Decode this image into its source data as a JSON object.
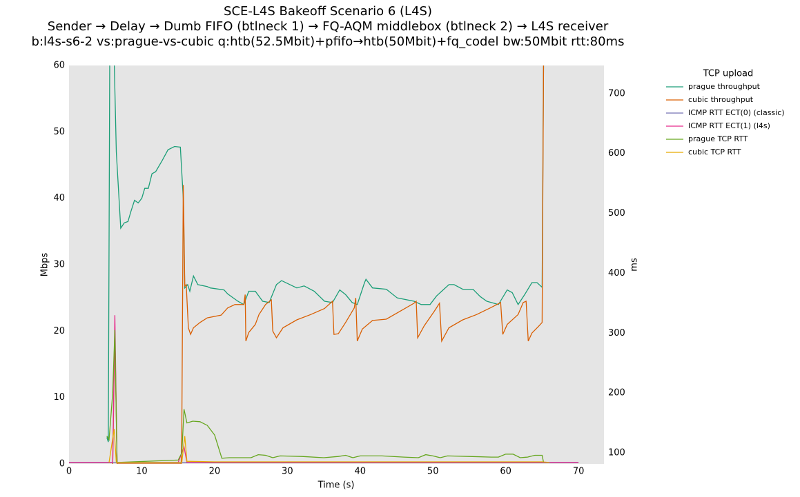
{
  "chart_data": {
    "type": "line",
    "title": [
      "SCE-L4S Bakeoff Scenario 6 (L4S)",
      "Sender → Delay → Dumb FIFO (btlneck 1) → FQ-AQM middlebox (btlneck 2) → L4S receiver",
      "b:l4s-s6-2 vs:prague-vs-cubic q:htb(52.5Mbit)+pfifo→htb(50Mbit)+fq_codel bw:50Mbit rtt:80ms"
    ],
    "xlabel": "Time (s)",
    "ylabel": "Mbps",
    "y2label": "ms",
    "legend_title": "TCP upload",
    "legend_position": "outside-right",
    "xlim": [
      0,
      73.5
    ],
    "xticks": [
      0,
      10,
      20,
      30,
      40,
      50,
      60,
      70
    ],
    "ylim": [
      0,
      60
    ],
    "yticks": [
      0,
      10,
      20,
      30,
      40,
      50,
      60
    ],
    "y2lim": [
      81.6,
      747
    ],
    "y2ticks": [
      100,
      200,
      300,
      400,
      500,
      600,
      700
    ],
    "background": "#e5e5e5",
    "series": [
      {
        "name": "prague throughput",
        "color": "#1b9e77",
        "x": [
          5.2,
          5.4,
          5.6,
          6.2,
          6.5,
          7.1,
          7.6,
          8.1,
          8.5,
          9.0,
          9.5,
          10,
          10.4,
          10.9,
          11.4,
          11.9,
          12.8,
          13.6,
          14.5,
          15.3,
          15.7,
          15.9,
          16.3,
          16.6,
          17.1,
          17.7,
          19,
          19.4,
          21.3,
          21.8,
          23.2,
          24,
          24.7,
          25.6,
          26.6,
          27.5,
          28.5,
          29.2,
          31.3,
          32.3,
          33.7,
          35.1,
          36.2,
          37.2,
          38,
          38.9,
          39.6,
          40.6,
          40.8,
          41.7,
          43.6,
          45.1,
          47.4,
          48.4,
          49.6,
          50.5,
          51.2,
          52.2,
          52.9,
          54.1,
          55.5,
          56.5,
          57.4,
          59,
          60.2,
          60.9,
          61.7,
          62.6,
          63.6,
          64.3,
          65,
          65.2
        ],
        "values": [
          4,
          3.3,
          61,
          61,
          47,
          35.5,
          36.3,
          36.5,
          38,
          39.7,
          39.3,
          40,
          41.5,
          41.5,
          43.7,
          44,
          45.7,
          47.3,
          47.8,
          47.7,
          40,
          26.5,
          27,
          26,
          28.3,
          27,
          26.7,
          26.5,
          26.2,
          25.6,
          24.5,
          24,
          26,
          26,
          24.5,
          24.3,
          27,
          27.6,
          26.5,
          26.8,
          26,
          24.5,
          24.3,
          26.2,
          25.5,
          24.3,
          24,
          27.3,
          27.8,
          26.5,
          26.3,
          25,
          24.5,
          24,
          24,
          25.3,
          26,
          27,
          27,
          26.3,
          26.3,
          25.2,
          24.5,
          24,
          26.2,
          25.8,
          24,
          25.5,
          27.3,
          27.3,
          26.6,
          61
        ]
      },
      {
        "name": "cubic throughput",
        "color": "#d95f02",
        "x": [
          6.0,
          6.3,
          6.6,
          15.4,
          15.5,
          15.7,
          15.8,
          15.9,
          16.1,
          16.4,
          16.7,
          17.1,
          18,
          19,
          20.9,
          21.8,
          22.8,
          24,
          24.2,
          24.3,
          24.7,
          25.6,
          26.1,
          27,
          27.8,
          28,
          28.5,
          29.4,
          31.3,
          33.2,
          35.1,
          36.2,
          36.4,
          37,
          38,
          39.2,
          39.4,
          39.6,
          40.3,
          41.7,
          43.6,
          45.5,
          47.4,
          47.7,
          47.9,
          48.8,
          50.2,
          50.9,
          51.2,
          52.2,
          54.1,
          56,
          57.9,
          59.3,
          59.6,
          60.2,
          61.7,
          62.4,
          62.8,
          63.1,
          63.6,
          64.5,
          65,
          65.2
        ],
        "values": [
          0,
          20,
          0,
          0,
          5,
          42,
          35,
          26.8,
          27,
          20.5,
          19.5,
          20.5,
          21.3,
          22,
          22.4,
          23.5,
          24,
          24,
          25.5,
          18.5,
          19.8,
          21,
          22.5,
          24,
          24.7,
          20,
          19,
          20.5,
          21.7,
          22.5,
          23.4,
          24.5,
          19.5,
          19.6,
          21.3,
          23.5,
          25,
          18.5,
          20.3,
          21.6,
          21.8,
          23,
          24.2,
          24.5,
          19,
          20.8,
          23,
          24.2,
          18.5,
          20.5,
          21.7,
          22.5,
          23.5,
          24.3,
          19.5,
          21,
          22.5,
          24.3,
          24.5,
          18.5,
          19.7,
          20.7,
          21.3,
          61
        ]
      },
      {
        "name": "ICMP RTT ECT(0) (classic)",
        "color": "#7570b3",
        "axis": "y2",
        "x": [
          0,
          5.5,
          66,
          70
        ],
        "values": [
          83.5,
          83.5,
          83.5,
          83.5
        ]
      },
      {
        "name": "ICMP RTT ECT(1) (l4s)",
        "color": "#e7298a",
        "axis": "y2",
        "x": [
          0,
          5.5,
          6.0,
          6.3,
          6.6,
          15,
          15.8,
          16.2,
          66,
          70
        ],
        "values": [
          84,
          84,
          84,
          330,
          84,
          84,
          110,
          84,
          84,
          84
        ]
      },
      {
        "name": "prague TCP RTT",
        "color": "#66a61e",
        "axis": "y2",
        "x": [
          5.2,
          5.5,
          6.0,
          6.3,
          6.6,
          15,
          15.5,
          15.8,
          16.2,
          17,
          18,
          19,
          20,
          21,
          22,
          25,
          26,
          27,
          28,
          29,
          32,
          35,
          37,
          38,
          39,
          40,
          43,
          46,
          48,
          49,
          50,
          51,
          52,
          55,
          58,
          59,
          60,
          61,
          62,
          63,
          64,
          65,
          65.2
        ],
        "values": [
          128,
          122,
          200,
          305,
          84,
          88,
          100,
          173,
          150,
          153,
          152,
          146,
          130,
          91,
          92,
          92,
          97,
          96,
          92,
          95,
          94,
          92,
          94,
          96,
          92,
          95,
          95,
          93,
          92,
          97,
          95,
          92,
          95,
          94,
          93,
          93,
          98,
          98,
          92,
          93,
          96,
          96,
          84
        ]
      },
      {
        "name": "cubic TCP RTT",
        "color": "#e6ab02",
        "axis": "y2",
        "x": [
          5.5,
          6.2,
          6.5,
          15.5,
          15.9,
          16.2,
          20,
          65,
          66
        ],
        "values": [
          84,
          140,
          84,
          84,
          128,
          86,
          85,
          85,
          84
        ]
      }
    ]
  }
}
